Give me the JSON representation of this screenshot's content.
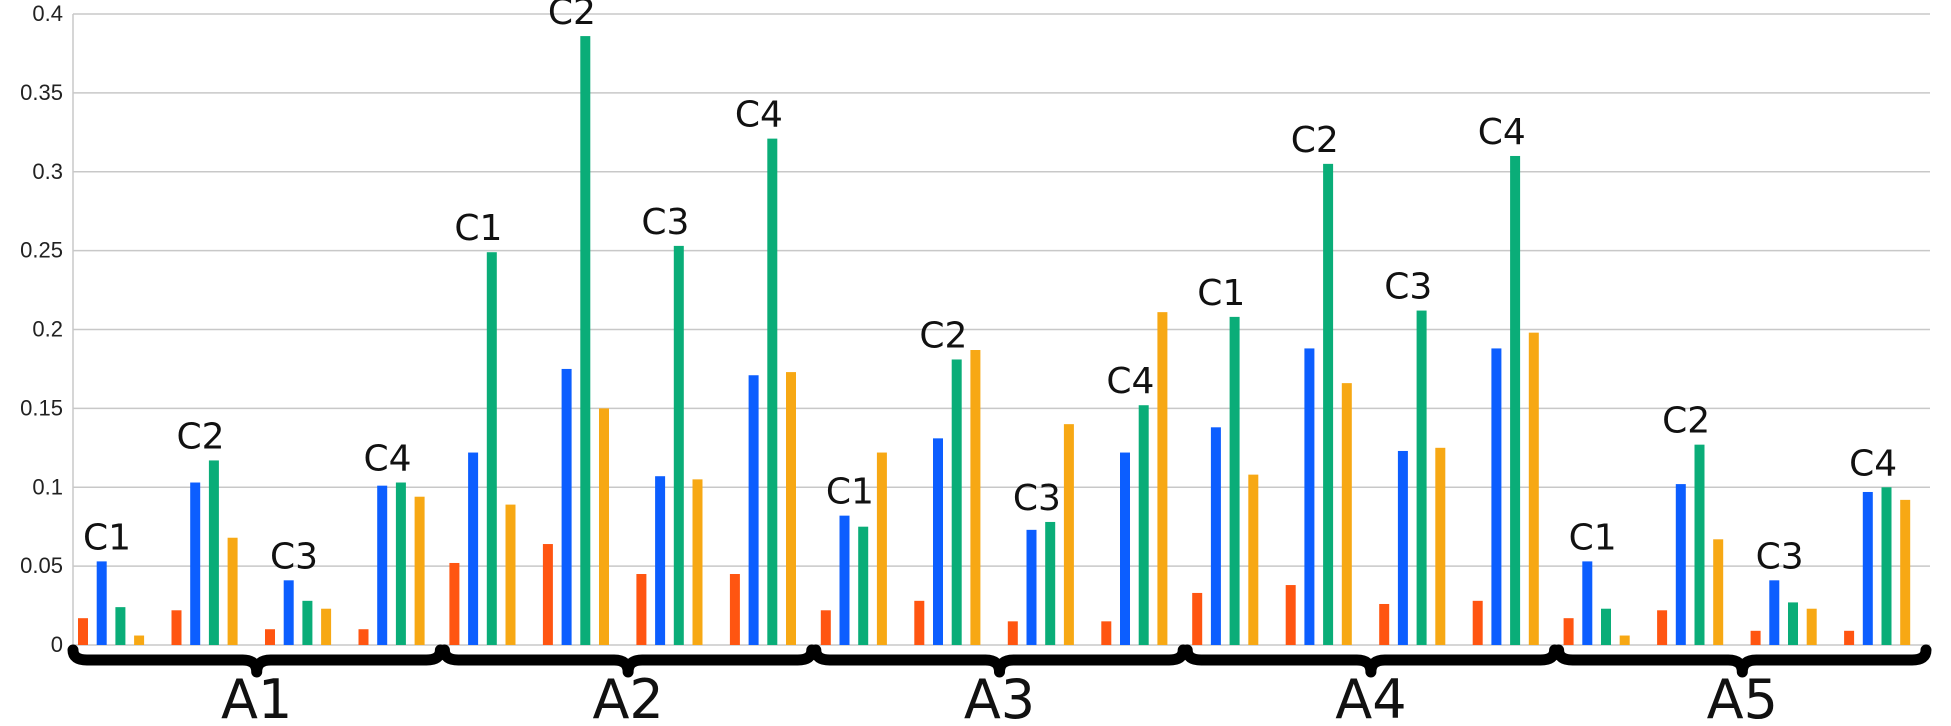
{
  "chart_data": {
    "type": "bar",
    "ylim": [
      0,
      0.4
    ],
    "yticks": [
      "0",
      "0.05",
      "0.1",
      "0.15",
      "0.2",
      "0.25",
      "0.3",
      "0.35",
      "0.4"
    ],
    "grid": true,
    "series_colors": [
      "#ff5511",
      "#0c5eff",
      "#0aad78",
      "#f7a814"
    ],
    "groups": [
      {
        "label": "A1",
        "subgroups": [
          {
            "label": "C1",
            "values": [
              0.017,
              0.053,
              0.024,
              0.006
            ]
          },
          {
            "label": "C2",
            "values": [
              0.022,
              0.103,
              0.117,
              0.068
            ]
          },
          {
            "label": "C3",
            "values": [
              0.01,
              0.041,
              0.028,
              0.023
            ]
          },
          {
            "label": "C4",
            "values": [
              0.01,
              0.101,
              0.103,
              0.094
            ]
          }
        ]
      },
      {
        "label": "A2",
        "subgroups": [
          {
            "label": "C1",
            "values": [
              0.052,
              0.122,
              0.249,
              0.089
            ]
          },
          {
            "label": "C2",
            "values": [
              0.064,
              0.175,
              0.386,
              0.15
            ]
          },
          {
            "label": "C3",
            "values": [
              0.045,
              0.107,
              0.253,
              0.105
            ]
          },
          {
            "label": "C4",
            "values": [
              0.045,
              0.171,
              0.321,
              0.173
            ]
          }
        ]
      },
      {
        "label": "A3",
        "subgroups": [
          {
            "label": "C1",
            "values": [
              0.022,
              0.082,
              0.075,
              0.122
            ]
          },
          {
            "label": "C2",
            "values": [
              0.028,
              0.131,
              0.181,
              0.187
            ]
          },
          {
            "label": "C3",
            "values": [
              0.015,
              0.073,
              0.078,
              0.14
            ]
          },
          {
            "label": "C4",
            "values": [
              0.015,
              0.122,
              0.152,
              0.211
            ]
          }
        ]
      },
      {
        "label": "A4",
        "subgroups": [
          {
            "label": "C1",
            "values": [
              0.033,
              0.138,
              0.208,
              0.108
            ]
          },
          {
            "label": "C2",
            "values": [
              0.038,
              0.188,
              0.305,
              0.166
            ]
          },
          {
            "label": "C3",
            "values": [
              0.026,
              0.123,
              0.212,
              0.125
            ]
          },
          {
            "label": "C4",
            "values": [
              0.028,
              0.188,
              0.31,
              0.198
            ]
          }
        ]
      },
      {
        "label": "A5",
        "subgroups": [
          {
            "label": "C1",
            "values": [
              0.017,
              0.053,
              0.023,
              0.006
            ]
          },
          {
            "label": "C2",
            "values": [
              0.022,
              0.102,
              0.127,
              0.067
            ]
          },
          {
            "label": "C3",
            "values": [
              0.009,
              0.041,
              0.027,
              0.023
            ]
          },
          {
            "label": "C4",
            "values": [
              0.009,
              0.097,
              0.1,
              0.092
            ]
          }
        ]
      }
    ]
  }
}
